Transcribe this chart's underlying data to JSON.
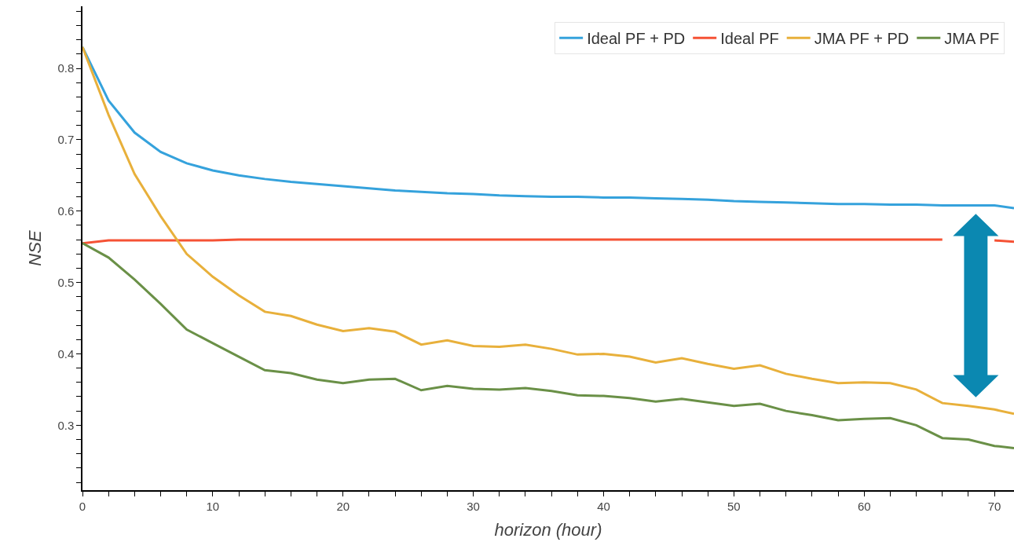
{
  "chart_data": {
    "type": "line",
    "xlabel": "horizon (hour)",
    "ylabel": "NSE",
    "x": [
      0,
      2,
      4,
      6,
      8,
      10,
      12,
      14,
      16,
      18,
      20,
      22,
      24,
      26,
      28,
      30,
      32,
      34,
      36,
      38,
      40,
      42,
      44,
      46,
      48,
      50,
      52,
      54,
      56,
      58,
      60,
      62,
      64,
      66,
      68,
      70,
      71.5
    ],
    "series": [
      {
        "name": "Ideal PF + PD",
        "color": "#35a2dc",
        "values": [
          0.83,
          0.755,
          0.71,
          0.683,
          0.667,
          0.657,
          0.65,
          0.645,
          0.641,
          0.638,
          0.635,
          0.632,
          0.629,
          0.627,
          0.625,
          0.624,
          0.622,
          0.621,
          0.62,
          0.62,
          0.619,
          0.619,
          0.618,
          0.617,
          0.616,
          0.614,
          0.613,
          0.612,
          0.611,
          0.61,
          0.61,
          0.609,
          0.609,
          0.608,
          0.608,
          0.608,
          0.604
        ]
      },
      {
        "name": "Ideal PF",
        "color": "#f55235",
        "values": [
          0.555,
          0.559,
          0.559,
          0.559,
          0.559,
          0.559,
          0.56,
          0.56,
          0.56,
          0.56,
          0.56,
          0.56,
          0.56,
          0.56,
          0.56,
          0.56,
          0.56,
          0.56,
          0.56,
          0.56,
          0.56,
          0.56,
          0.56,
          0.56,
          0.56,
          0.56,
          0.56,
          0.56,
          0.56,
          0.56,
          0.56,
          0.56,
          0.56,
          0.56,
          null,
          0.559,
          0.557
        ]
      },
      {
        "name": "JMA PF + PD",
        "color": "#e8b03b",
        "values": [
          0.83,
          0.735,
          0.652,
          0.593,
          0.54,
          0.508,
          0.482,
          0.459,
          0.453,
          0.441,
          0.432,
          0.436,
          0.431,
          0.413,
          0.419,
          0.411,
          0.41,
          0.413,
          0.407,
          0.399,
          0.4,
          0.396,
          0.388,
          0.394,
          0.386,
          0.379,
          0.384,
          0.372,
          0.365,
          0.359,
          0.36,
          0.359,
          0.35,
          0.331,
          0.327,
          0.322,
          0.316
        ]
      },
      {
        "name": "JMA PF",
        "color": "#6a9047",
        "values": [
          0.555,
          0.535,
          0.504,
          0.47,
          0.434,
          0.415,
          0.396,
          0.377,
          0.373,
          0.364,
          0.359,
          0.364,
          0.365,
          0.349,
          0.355,
          0.351,
          0.35,
          0.352,
          0.348,
          0.342,
          0.341,
          0.338,
          0.333,
          0.337,
          0.332,
          0.327,
          0.33,
          0.32,
          0.314,
          0.307,
          0.309,
          0.31,
          0.3,
          0.282,
          0.28,
          0.271,
          0.268
        ]
      }
    ],
    "xlim": [
      0,
      71.5
    ],
    "ylim": [
      0.209,
      0.887
    ],
    "xticks": [
      0,
      {
        "value": 2,
        "label": null
      },
      {
        "value": 4,
        "label": null
      },
      {
        "value": 6,
        "label": null
      },
      {
        "value": 8,
        "label": null
      },
      10,
      {
        "value": 12,
        "label": null
      },
      {
        "value": 14,
        "label": null
      },
      {
        "value": 16,
        "label": null
      },
      {
        "value": 18,
        "label": null
      },
      20,
      {
        "value": 22,
        "label": null
      },
      {
        "value": 24,
        "label": null
      },
      {
        "value": 26,
        "label": null
      },
      {
        "value": 28,
        "label": null
      },
      30,
      {
        "value": 32,
        "label": null
      },
      {
        "value": 34,
        "label": null
      },
      {
        "value": 36,
        "label": null
      },
      {
        "value": 38,
        "label": null
      },
      40,
      {
        "value": 42,
        "label": null
      },
      {
        "value": 44,
        "label": null
      },
      {
        "value": 46,
        "label": null
      },
      {
        "value": 48,
        "label": null
      },
      50,
      {
        "value": 52,
        "label": null
      },
      {
        "value": 54,
        "label": null
      },
      {
        "value": 56,
        "label": null
      },
      {
        "value": 58,
        "label": null
      },
      60,
      {
        "value": 62,
        "label": null
      },
      {
        "value": 64,
        "label": null
      },
      {
        "value": 66,
        "label": null
      },
      {
        "value": 68,
        "label": null
      },
      70
    ],
    "yticks": [
      {
        "value": 0.22,
        "label": null
      },
      {
        "value": 0.24,
        "label": null
      },
      {
        "value": 0.26,
        "label": null
      },
      {
        "value": 0.28,
        "label": null
      },
      0.3,
      {
        "value": 0.32,
        "label": null
      },
      {
        "value": 0.34,
        "label": null
      },
      {
        "value": 0.36,
        "label": null
      },
      {
        "value": 0.38,
        "label": null
      },
      0.4,
      {
        "value": 0.42,
        "label": null
      },
      {
        "value": 0.44,
        "label": null
      },
      {
        "value": 0.46,
        "label": null
      },
      {
        "value": 0.48,
        "label": null
      },
      0.5,
      {
        "value": 0.52,
        "label": null
      },
      {
        "value": 0.54,
        "label": null
      },
      {
        "value": 0.56,
        "label": null
      },
      {
        "value": 0.58,
        "label": null
      },
      0.6,
      {
        "value": 0.62,
        "label": null
      },
      {
        "value": 0.64,
        "label": null
      },
      {
        "value": 0.66,
        "label": null
      },
      {
        "value": 0.68,
        "label": null
      },
      0.7,
      {
        "value": 0.72,
        "label": null
      },
      {
        "value": 0.74,
        "label": null
      },
      {
        "value": 0.76,
        "label": null
      },
      {
        "value": 0.78,
        "label": null
      },
      0.8,
      {
        "value": 0.82,
        "label": null
      },
      {
        "value": 0.84,
        "label": null
      },
      {
        "value": 0.86,
        "label": null
      },
      {
        "value": 0.88,
        "label": null
      }
    ],
    "legend": "top right",
    "line_style": "solid"
  }
}
